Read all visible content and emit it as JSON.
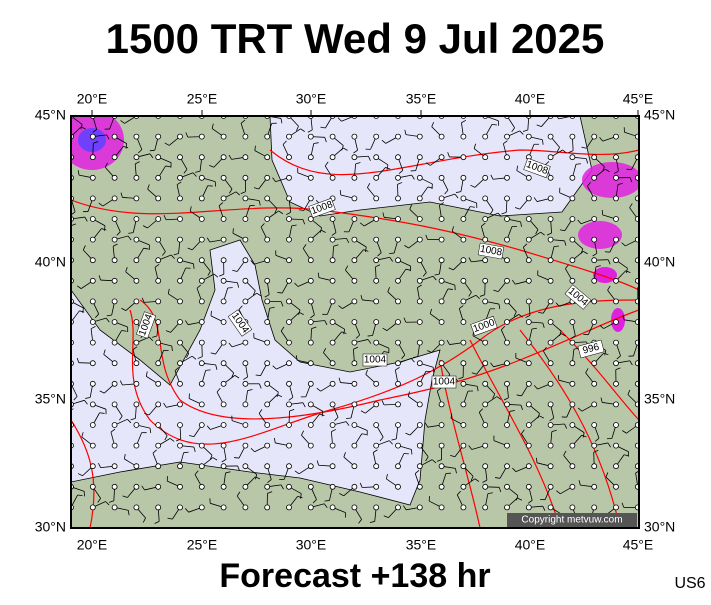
{
  "title": "1500 TRT Wed 9 Jul 2025",
  "footer": "Forecast +138 hr",
  "code": "US6",
  "copyright": "Copyright metvuw.com",
  "lon_labels": [
    "20°E",
    "25°E",
    "30°E",
    "35°E",
    "40°E",
    "45°E"
  ],
  "lat_labels": [
    "45°N",
    "40°N",
    "35°N",
    "30°N"
  ],
  "isobar_labels": [
    "1008",
    "1008",
    "1008",
    "1004",
    "1004",
    "1004",
    "1004",
    "1000",
    "996",
    "1004"
  ]
}
